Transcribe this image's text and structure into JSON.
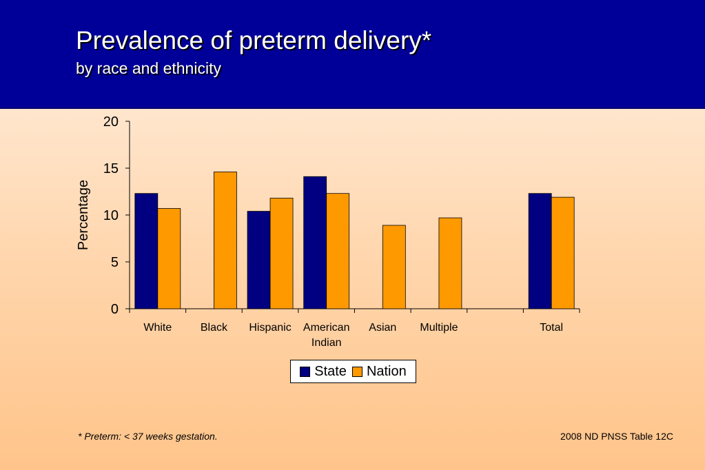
{
  "header": {
    "title": "Prevalence of preterm delivery*",
    "subtitle": "by race and ethnicity"
  },
  "colors": {
    "state": "#000080",
    "nation": "#ff9900",
    "header_bg": "#000099"
  },
  "legend": {
    "state_label": "State",
    "nation_label": "Nation"
  },
  "footer": {
    "footnote": "*  Preterm: < 37 weeks gestation.",
    "source": "2008 ND PNSS Table 12C"
  },
  "chart_data": {
    "type": "bar",
    "title": "Prevalence of preterm delivery*",
    "subtitle": "by race and ethnicity",
    "xlabel": "",
    "ylabel": "Percentage",
    "ylim": [
      0,
      20
    ],
    "yticks": [
      0,
      5,
      10,
      15,
      20
    ],
    "categories": [
      "White",
      "Black",
      "Hispanic",
      "American Indian",
      "Asian",
      "Multiple",
      "",
      "Total"
    ],
    "series": [
      {
        "name": "State",
        "color": "#000080",
        "values": [
          12.3,
          null,
          10.4,
          14.1,
          null,
          null,
          null,
          12.3
        ]
      },
      {
        "name": "Nation",
        "color": "#ff9900",
        "values": [
          10.7,
          14.6,
          11.8,
          12.3,
          8.9,
          9.7,
          null,
          11.9
        ]
      }
    ],
    "legend": "bottom-center",
    "grid": false
  }
}
